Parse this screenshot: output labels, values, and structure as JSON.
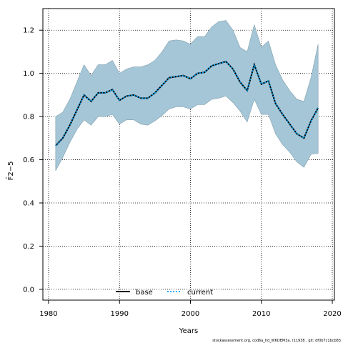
{
  "chart_data": {
    "type": "area",
    "xlabel": "Years",
    "ylabel": "F̄2−5",
    "xlim": [
      1980,
      2020
    ],
    "ylim": [
      -0.05,
      1.3
    ],
    "x_ticks": [
      1980,
      1990,
      2000,
      2010,
      2020
    ],
    "y_ticks": [
      0.0,
      0.2,
      0.4,
      0.6,
      0.8,
      1.0,
      1.2
    ],
    "grid": true,
    "legend_placement": "bottom-center",
    "x": [
      1981,
      1982,
      1983,
      1984,
      1985,
      1986,
      1987,
      1988,
      1989,
      1990,
      1991,
      1992,
      1993,
      1994,
      1995,
      1996,
      1997,
      1998,
      1999,
      2000,
      2001,
      2002,
      2003,
      2004,
      2005,
      2006,
      2007,
      2008,
      2009,
      2010,
      2011,
      2012,
      2013,
      2014,
      2015,
      2016,
      2017,
      2018
    ],
    "series": [
      {
        "name": "base",
        "style": "solid",
        "color": "#000000",
        "values": [
          0.665,
          0.7,
          0.76,
          0.83,
          0.9,
          0.87,
          0.91,
          0.91,
          0.925,
          0.875,
          0.895,
          0.9,
          0.885,
          0.885,
          0.91,
          0.945,
          0.98,
          0.985,
          0.99,
          0.975,
          1.0,
          1.005,
          1.035,
          1.045,
          1.055,
          1.02,
          0.96,
          0.92,
          1.04,
          0.95,
          0.965,
          0.86,
          0.81,
          0.765,
          0.72,
          0.7,
          0.78,
          0.84
        ]
      },
      {
        "name": "current",
        "style": "dotted",
        "color": "#00aaff",
        "values": [
          0.665,
          0.7,
          0.76,
          0.83,
          0.9,
          0.87,
          0.91,
          0.91,
          0.925,
          0.875,
          0.895,
          0.9,
          0.885,
          0.885,
          0.91,
          0.945,
          0.98,
          0.985,
          0.99,
          0.975,
          1.0,
          1.005,
          1.035,
          1.045,
          1.055,
          1.02,
          0.96,
          0.92,
          1.04,
          0.95,
          0.965,
          0.86,
          0.81,
          0.765,
          0.72,
          0.7,
          0.78,
          0.84
        ]
      }
    ],
    "band": {
      "color": "#a5c6d6",
      "lower": [
        0.55,
        0.61,
        0.68,
        0.74,
        0.785,
        0.76,
        0.8,
        0.8,
        0.81,
        0.765,
        0.785,
        0.785,
        0.765,
        0.76,
        0.78,
        0.805,
        0.835,
        0.845,
        0.845,
        0.835,
        0.855,
        0.855,
        0.88,
        0.885,
        0.895,
        0.865,
        0.825,
        0.775,
        0.88,
        0.81,
        0.81,
        0.72,
        0.67,
        0.635,
        0.59,
        0.565,
        0.625,
        0.63
      ],
      "upper": [
        0.8,
        0.82,
        0.88,
        0.96,
        1.04,
        0.99,
        1.04,
        1.04,
        1.06,
        1.0,
        1.02,
        1.03,
        1.03,
        1.04,
        1.06,
        1.1,
        1.15,
        1.155,
        1.15,
        1.135,
        1.17,
        1.17,
        1.215,
        1.24,
        1.245,
        1.2,
        1.12,
        1.1,
        1.225,
        1.12,
        1.15,
        1.04,
        0.97,
        0.92,
        0.88,
        0.87,
        0.98,
        1.135
      ]
    }
  },
  "footer": {
    "text": "stockassessment.org, cod6a_hd_WKDEM3a, r11938 , git: df0b7c1bcb83"
  }
}
